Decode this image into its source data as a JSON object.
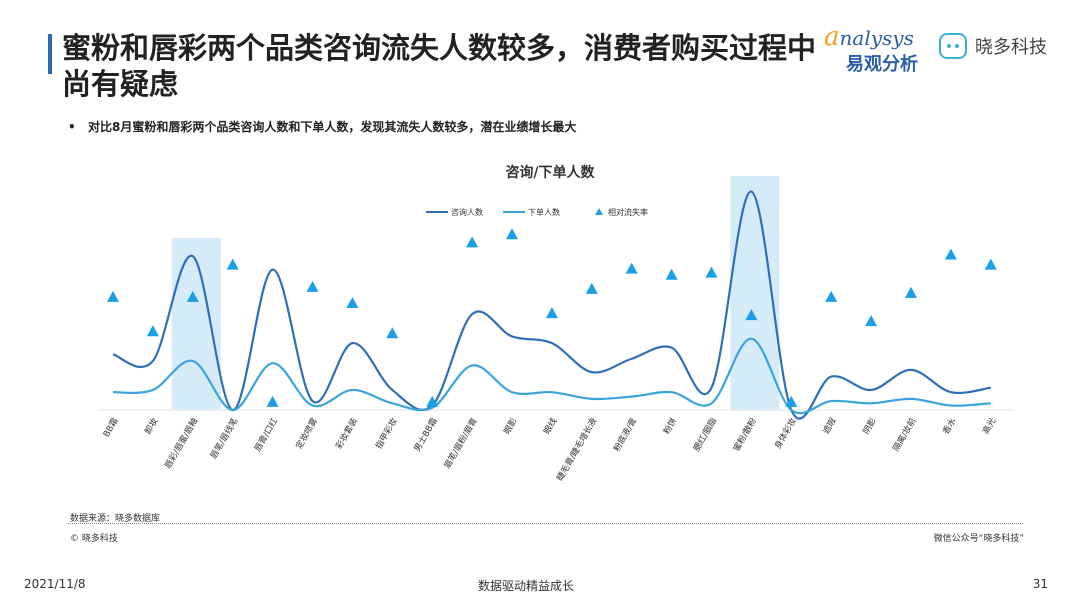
{
  "header": {
    "title": "蜜粉和唇彩两个品类咨询流失人数较多，消费者购买过程中尚有疑虑",
    "brand_analysys_first": "a",
    "brand_analysys_rest": "nalysys",
    "brand_analysys_cn": "易观分析",
    "brand_xiaoduo": "晓多科技",
    "robot_icon": "robot-logo-icon"
  },
  "bullet": {
    "text": "对比8月蜜粉和唇彩两个品类咨询人数和下单人数，发现其流失人数较多，潜在业绩增长最大"
  },
  "footer": {
    "source": "数据来源：晓多数据库",
    "copyright": "© 晓多科技",
    "wechat": "微信公众号“晓多科技”"
  },
  "bottom": {
    "date": "2021/11/8",
    "slogan": "数据驱动精益成长",
    "page": "31"
  },
  "colors": {
    "consult": "#2e6fb5",
    "order": "#3aa5dc",
    "rate": "#1a9ee6",
    "highlight": "#d6ebf8",
    "title_bar": "#2a6ab0"
  },
  "chart_data": {
    "type": "line",
    "title": "咨询/下单人数",
    "categories": [
      "BB霜",
      "卸妆",
      "唇彩/唇蜜/唇釉",
      "唇笔/唇线笔",
      "唇膏/口红",
      "定妆喷雾",
      "彩妆套装",
      "指甲彩妆",
      "男士BB霜",
      "眉笔/眉粉/眉膏",
      "眼影",
      "眼线",
      "睫毛膏/睫毛增长液",
      "粉底液/膏",
      "粉饼",
      "腮红/胭脂",
      "蜜粉/散粉",
      "身体彩妆",
      "遮瑕",
      "阴影",
      "隔离/妆前",
      "香水",
      "高光"
    ],
    "series": [
      {
        "name": "咨询人数",
        "type": "line",
        "values": [
          25,
          22,
          69,
          0,
          63,
          4,
          30,
          9,
          2,
          43,
          33,
          30,
          17,
          23,
          28,
          10,
          98,
          0,
          15,
          9,
          18,
          8,
          10
        ]
      },
      {
        "name": "下单人数",
        "type": "line",
        "values": [
          8,
          9,
          22,
          0,
          21,
          2,
          9,
          3,
          1,
          20,
          8,
          8,
          5,
          6,
          8,
          3,
          32,
          0,
          4,
          3,
          5,
          2,
          3
        ]
      },
      {
        "name": "相对流失率",
        "type": "scatter",
        "values": [
          52,
          35,
          52,
          68,
          0,
          57,
          49,
          34,
          0,
          79,
          83,
          44,
          56,
          66,
          63,
          64,
          43,
          0,
          52,
          40,
          54,
          73,
          68
        ]
      }
    ],
    "highlight": [
      "唇彩/唇蜜/唇釉",
      "蜜粉/散粉"
    ],
    "ylim": [
      0,
      105
    ],
    "rate_ylim": [
      -4,
      99
    ],
    "grid": false,
    "legend_position": "top"
  }
}
